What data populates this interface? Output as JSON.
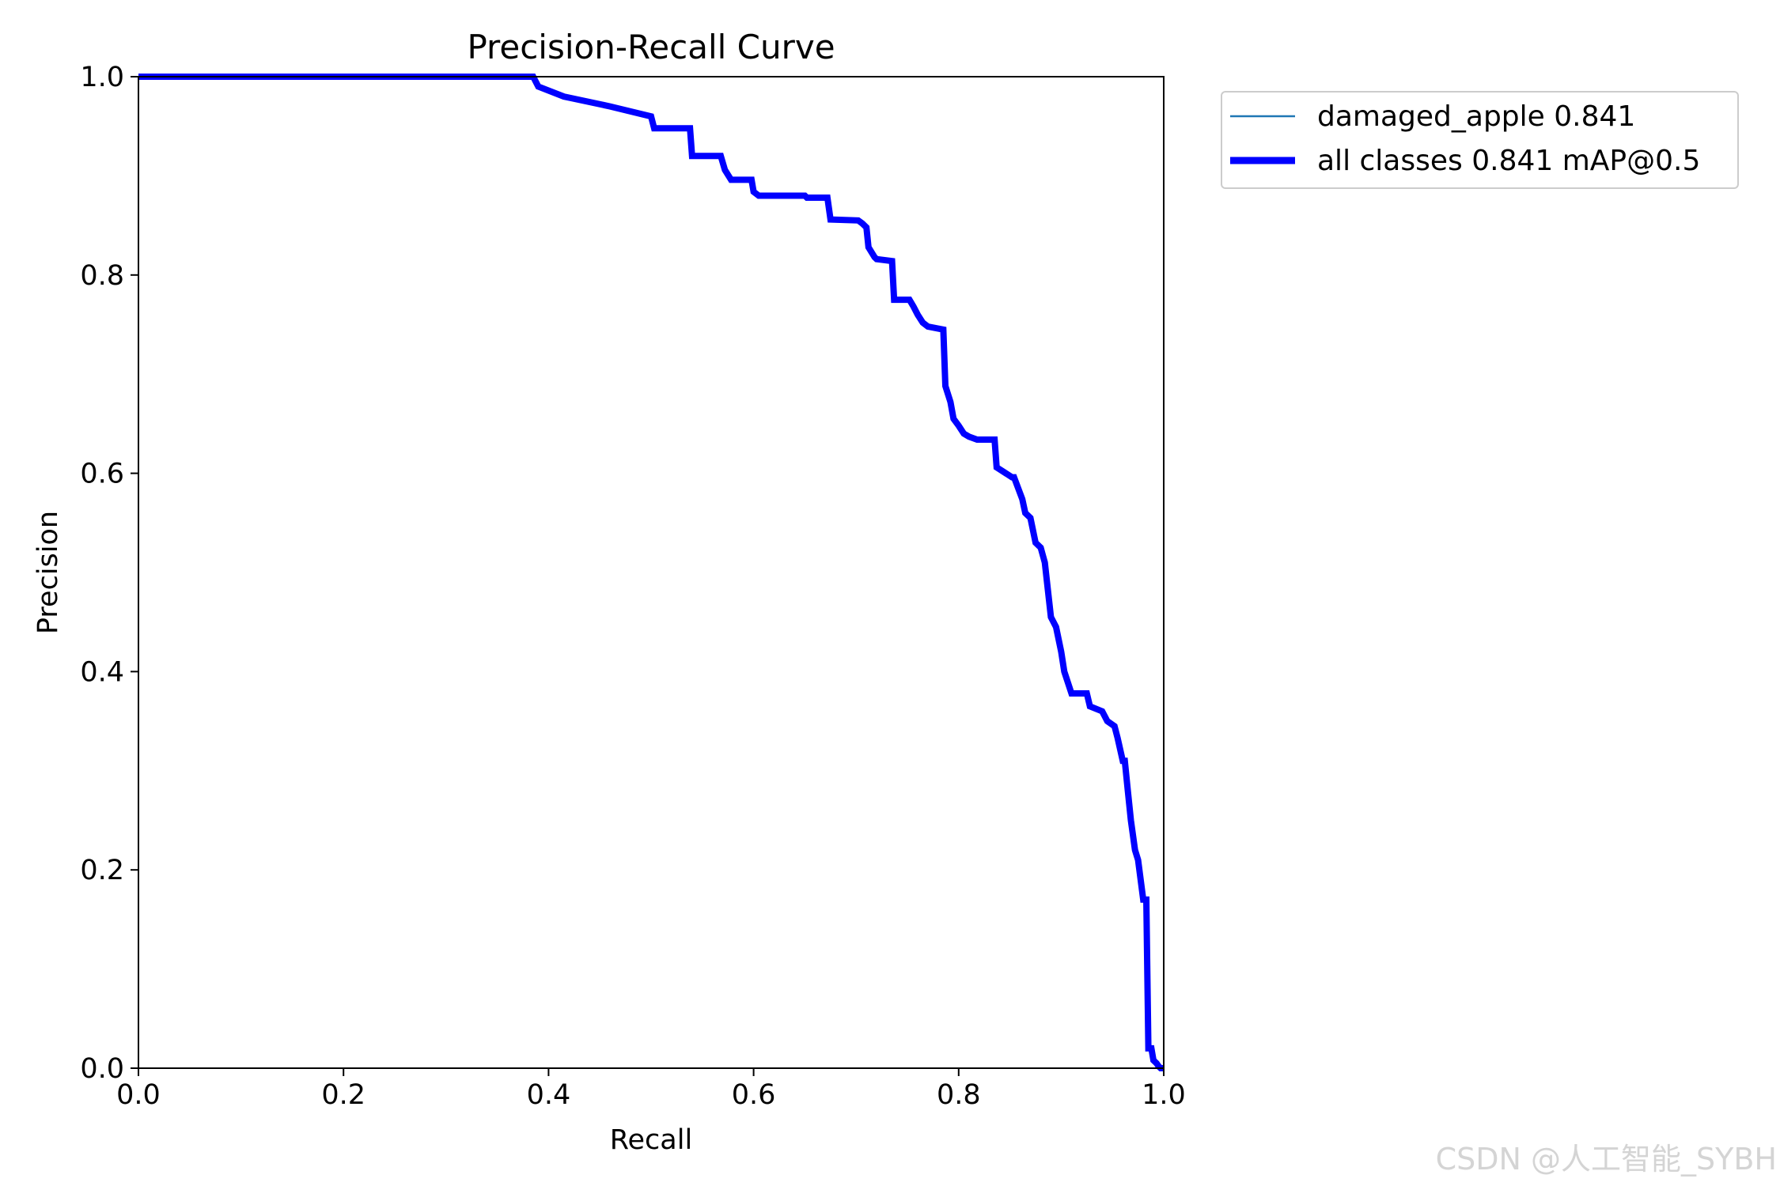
{
  "chart_data": {
    "type": "line",
    "title": "Precision-Recall Curve",
    "xlabel": "Recall",
    "ylabel": "Precision",
    "xlim": [
      0.0,
      1.0
    ],
    "ylim": [
      0.0,
      1.0
    ],
    "xticks": [
      "0.0",
      "0.2",
      "0.4",
      "0.6",
      "0.8",
      "1.0"
    ],
    "yticks": [
      "0.0",
      "0.2",
      "0.4",
      "0.6",
      "0.8",
      "1.0"
    ],
    "grid": false,
    "legend_position": "outside upper right",
    "series": [
      {
        "name": "damaged_apple 0.841",
        "color": "#1f77b4",
        "style": "thin",
        "x": [
          0.0,
          0.385,
          0.39,
          0.415,
          0.46,
          0.5,
          0.503,
          0.538,
          0.54,
          0.568,
          0.572,
          0.578,
          0.598,
          0.6,
          0.605,
          0.65,
          0.652,
          0.672,
          0.675,
          0.702,
          0.706,
          0.71,
          0.712,
          0.718,
          0.72,
          0.735,
          0.737,
          0.752,
          0.756,
          0.76,
          0.765,
          0.77,
          0.785,
          0.787,
          0.792,
          0.795,
          0.8,
          0.805,
          0.81,
          0.818,
          0.835,
          0.837,
          0.852,
          0.854,
          0.862,
          0.865,
          0.87,
          0.875,
          0.88,
          0.884,
          0.89,
          0.895,
          0.9,
          0.903,
          0.91,
          0.925,
          0.928,
          0.94,
          0.945,
          0.952,
          0.955,
          0.96,
          0.962,
          0.965,
          0.968,
          0.972,
          0.975,
          0.98,
          0.983,
          0.985,
          0.988,
          0.99,
          0.993,
          0.995,
          0.997,
          1.0
        ],
        "y": [
          1.0,
          1.0,
          0.99,
          0.98,
          0.97,
          0.96,
          0.948,
          0.948,
          0.92,
          0.92,
          0.906,
          0.896,
          0.896,
          0.884,
          0.88,
          0.88,
          0.878,
          0.878,
          0.856,
          0.855,
          0.852,
          0.848,
          0.828,
          0.818,
          0.816,
          0.814,
          0.775,
          0.775,
          0.768,
          0.76,
          0.752,
          0.748,
          0.745,
          0.688,
          0.672,
          0.655,
          0.648,
          0.64,
          0.637,
          0.634,
          0.634,
          0.606,
          0.596,
          0.596,
          0.574,
          0.56,
          0.555,
          0.53,
          0.525,
          0.51,
          0.455,
          0.445,
          0.42,
          0.4,
          0.378,
          0.378,
          0.365,
          0.36,
          0.35,
          0.345,
          0.333,
          0.31,
          0.31,
          0.28,
          0.25,
          0.22,
          0.21,
          0.17,
          0.17,
          0.02,
          0.02,
          0.008,
          0.005,
          0.002,
          0.0,
          0.0
        ]
      },
      {
        "name": "all classes 0.841 mAP@0.5",
        "color": "#0000ff",
        "style": "thick",
        "x": [
          0.0,
          0.385,
          0.39,
          0.415,
          0.46,
          0.5,
          0.503,
          0.538,
          0.54,
          0.568,
          0.572,
          0.578,
          0.598,
          0.6,
          0.605,
          0.65,
          0.652,
          0.672,
          0.675,
          0.702,
          0.706,
          0.71,
          0.712,
          0.718,
          0.72,
          0.735,
          0.737,
          0.752,
          0.756,
          0.76,
          0.765,
          0.77,
          0.785,
          0.787,
          0.792,
          0.795,
          0.8,
          0.805,
          0.81,
          0.818,
          0.835,
          0.837,
          0.852,
          0.854,
          0.862,
          0.865,
          0.87,
          0.875,
          0.88,
          0.884,
          0.89,
          0.895,
          0.9,
          0.903,
          0.91,
          0.925,
          0.928,
          0.94,
          0.945,
          0.952,
          0.955,
          0.96,
          0.962,
          0.965,
          0.968,
          0.972,
          0.975,
          0.98,
          0.983,
          0.985,
          0.988,
          0.99,
          0.993,
          0.995,
          0.997,
          1.0
        ],
        "y": [
          1.0,
          1.0,
          0.99,
          0.98,
          0.97,
          0.96,
          0.948,
          0.948,
          0.92,
          0.92,
          0.906,
          0.896,
          0.896,
          0.884,
          0.88,
          0.88,
          0.878,
          0.878,
          0.856,
          0.855,
          0.852,
          0.848,
          0.828,
          0.818,
          0.816,
          0.814,
          0.775,
          0.775,
          0.768,
          0.76,
          0.752,
          0.748,
          0.745,
          0.688,
          0.672,
          0.655,
          0.648,
          0.64,
          0.637,
          0.634,
          0.634,
          0.606,
          0.596,
          0.596,
          0.574,
          0.56,
          0.555,
          0.53,
          0.525,
          0.51,
          0.455,
          0.445,
          0.42,
          0.4,
          0.378,
          0.378,
          0.365,
          0.36,
          0.35,
          0.345,
          0.333,
          0.31,
          0.31,
          0.28,
          0.25,
          0.22,
          0.21,
          0.17,
          0.17,
          0.02,
          0.02,
          0.008,
          0.005,
          0.002,
          0.0,
          0.0
        ]
      }
    ]
  },
  "watermark": "CSDN @人工智能_SYBH"
}
